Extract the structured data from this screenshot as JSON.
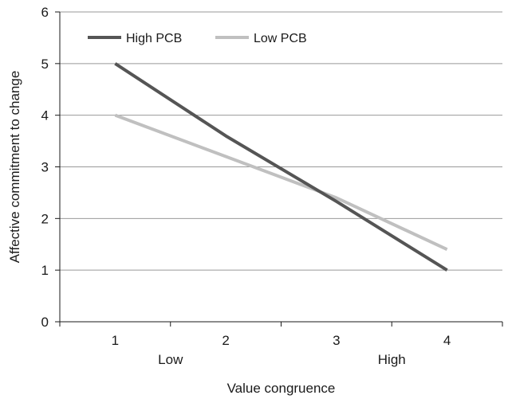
{
  "chart_data": {
    "type": "line",
    "x": [
      1,
      2,
      3,
      4
    ],
    "x_tick_labels": [
      "1",
      "2",
      "3",
      "4"
    ],
    "x_anchor_labels": {
      "low": "Low",
      "high": "High"
    },
    "xlabel": "Value congruence",
    "ylabel": "Affective commitment to change",
    "ylim": [
      0,
      6
    ],
    "y_ticks": [
      0,
      1,
      2,
      3,
      4,
      5,
      6
    ],
    "grid": true,
    "legend": "top-left",
    "series": [
      {
        "name": "High PCB",
        "color": "#555555",
        "values": [
          5.0,
          3.6,
          2.33,
          1.0
        ]
      },
      {
        "name": "Low PCB",
        "color": "#c0c0c0",
        "values": [
          4.0,
          3.2,
          2.4,
          1.4
        ]
      }
    ]
  }
}
